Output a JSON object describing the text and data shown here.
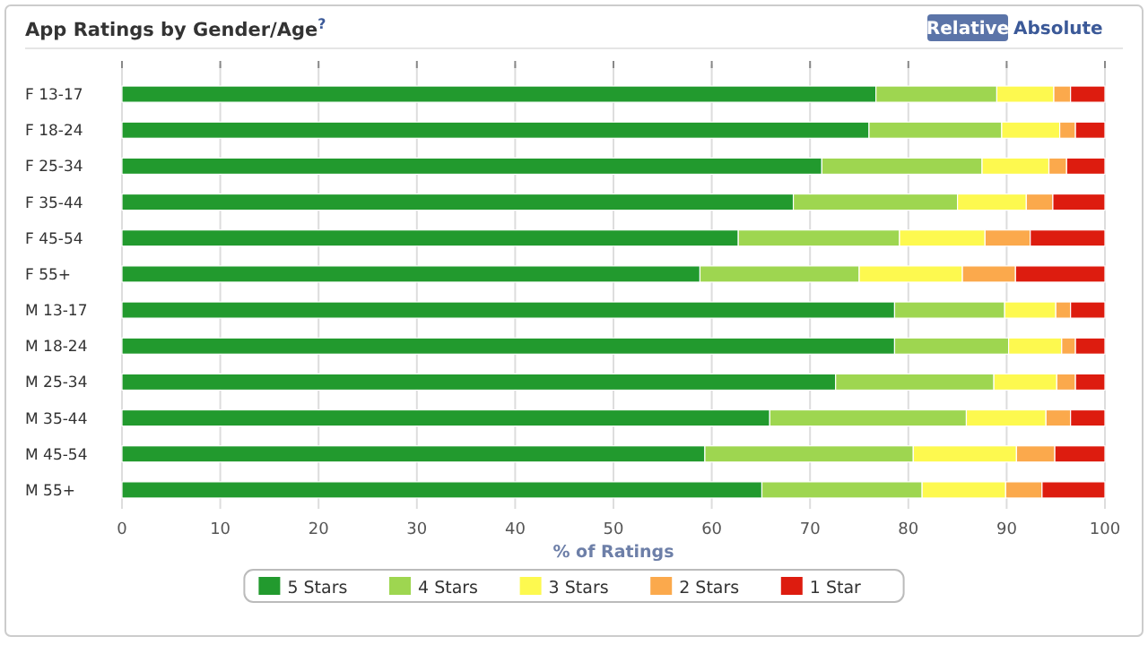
{
  "chart_data": {
    "type": "bar",
    "orientation": "horizontal",
    "stacked": true,
    "title": "App Ratings by Gender/Age$^{?}$",
    "xlabel": "% of Ratings",
    "annotations": [
      "Relative",
      "Absolute"
    ],
    "categories": [
      "F 13-17",
      "F 18-24",
      "F 25-34",
      "F 35-44",
      "F 45-54",
      "F 55+",
      "M 13-17",
      "M 18-24",
      "M 25-34",
      "M 35-44",
      "M 45-54",
      "M 55+"
    ],
    "series": [
      {
        "name": "5 Stars",
        "color": "#229a2e",
        "values": [
          76.7,
          76.0,
          71.2,
          68.3,
          62.7,
          58.8,
          78.6,
          78.6,
          72.6,
          65.9,
          59.3,
          65.1
        ]
      },
      {
        "name": "4 Stars",
        "color": "#9ed650",
        "values": [
          12.3,
          13.5,
          16.3,
          16.7,
          16.4,
          16.2,
          11.2,
          11.6,
          16.1,
          20.0,
          21.2,
          16.3
        ]
      },
      {
        "name": "3 Stars",
        "color": "#fdf94f",
        "values": [
          5.8,
          5.9,
          6.8,
          7.0,
          8.7,
          10.5,
          5.2,
          5.4,
          6.4,
          8.1,
          10.5,
          8.5
        ]
      },
      {
        "name": "2 Stars",
        "color": "#fba94c",
        "values": [
          1.7,
          1.6,
          1.8,
          2.7,
          4.6,
          5.4,
          1.5,
          1.4,
          1.9,
          2.5,
          3.9,
          3.7
        ]
      },
      {
        "name": "1 Star",
        "color": "#dd1c0f",
        "values": [
          3.5,
          3.0,
          3.9,
          5.3,
          7.6,
          9.1,
          3.5,
          3.0,
          3.0,
          3.5,
          5.1,
          6.4
        ]
      }
    ],
    "xlim": [
      0,
      100
    ],
    "xticks": [
      0,
      10,
      20,
      30,
      40,
      50,
      60,
      70,
      80,
      90,
      100
    ],
    "grid": "x",
    "legend": "bottom"
  }
}
